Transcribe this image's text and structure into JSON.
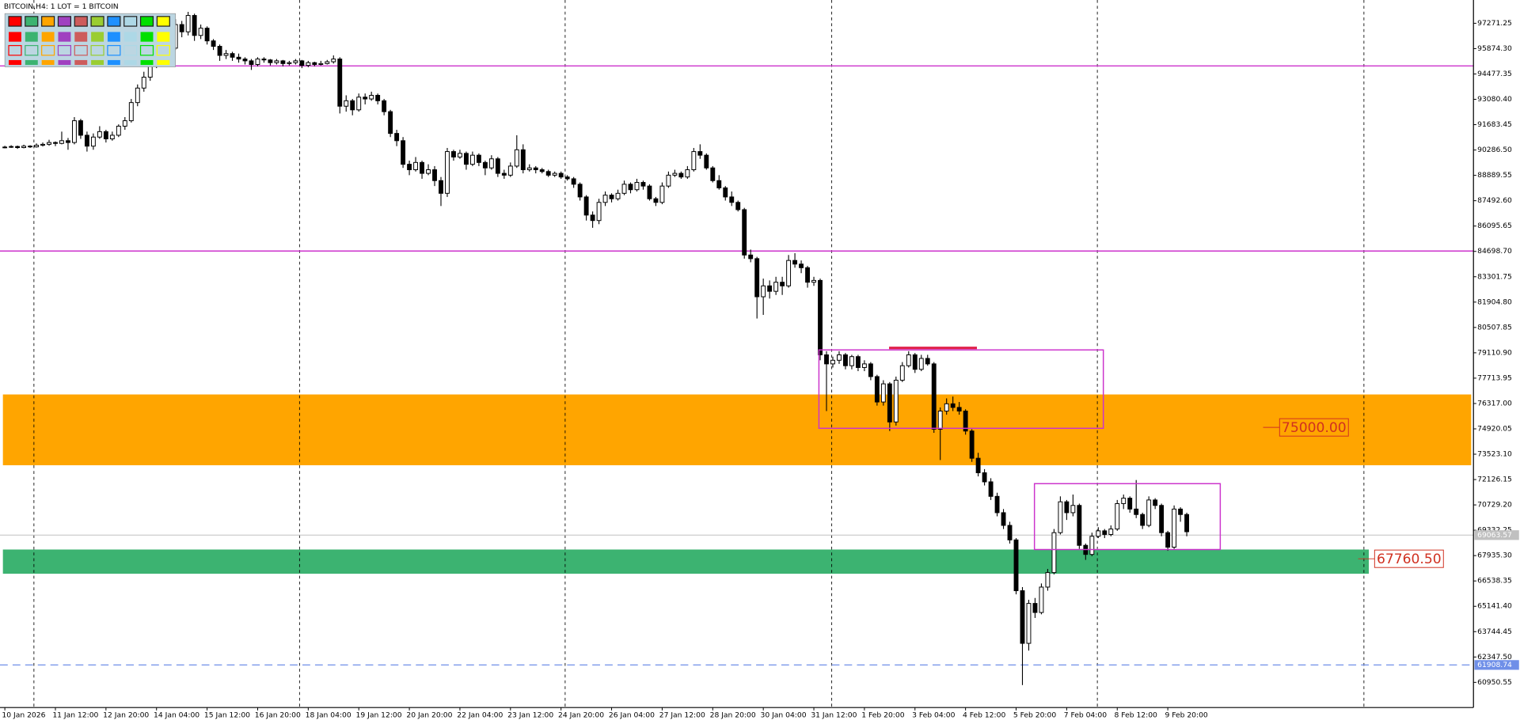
{
  "chart_data": {
    "type": "candlestick",
    "title": "BITCOIN,H4:  1 LOT = 1 BITCOIN",
    "ylim": [
      59563,
      98553
    ],
    "yticks": [
      {
        "value": 97271.25,
        "label": "97271.25"
      },
      {
        "value": 95874.3,
        "label": "95874.30"
      },
      {
        "value": 94477.35,
        "label": "94477.35"
      },
      {
        "value": 93080.4,
        "label": "93080.40"
      },
      {
        "value": 91683.45,
        "label": "91683.45"
      },
      {
        "value": 90286.5,
        "label": "90286.50"
      },
      {
        "value": 88889.55,
        "label": "88889.55"
      },
      {
        "value": 87492.6,
        "label": "87492.60"
      },
      {
        "value": 86095.65,
        "label": "86095.65"
      },
      {
        "value": 84698.7,
        "label": "84698.70"
      },
      {
        "value": 83301.75,
        "label": "83301.75"
      },
      {
        "value": 81904.8,
        "label": "81904.80"
      },
      {
        "value": 80507.85,
        "label": "80507.85"
      },
      {
        "value": 79110.9,
        "label": "79110.90"
      },
      {
        "value": 77713.95,
        "label": "77713.95"
      },
      {
        "value": 76317,
        "label": "76317.00"
      },
      {
        "value": 74920.05,
        "label": "74920.05"
      },
      {
        "value": 73523.1,
        "label": "73523.10"
      },
      {
        "value": 72126.15,
        "label": "72126.15"
      },
      {
        "value": 70729.2,
        "label": "70729.20"
      },
      {
        "value": 69332.25,
        "label": "69332.25"
      },
      {
        "value": 67935.3,
        "label": "67935.30"
      },
      {
        "value": 66538.35,
        "label": "66538.35"
      },
      {
        "value": 65141.4,
        "label": "65141.40"
      },
      {
        "value": 63744.45,
        "label": "63744.45"
      },
      {
        "value": 62347.5,
        "label": "62347.50"
      },
      {
        "value": 60950.55,
        "label": "60950.55"
      }
    ],
    "time_labels": [
      "10 Jan 2026",
      "11 Jan 12:00",
      "12 Jan 20:00",
      "14 Jan 04:00",
      "15 Jan 12:00",
      "16 Jan 20:00",
      "18 Jan 04:00",
      "19 Jan 12:00",
      "20 Jan 20:00",
      "22 Jan 04:00",
      "23 Jan 12:00",
      "24 Jan 20:00",
      "26 Jan 04:00",
      "27 Jan 12:00",
      "28 Jan 20:00",
      "30 Jan 04:00",
      "31 Jan 12:00",
      "1 Feb 20:00",
      "3 Feb 04:00",
      "4 Feb 12:00",
      "5 Feb 20:00",
      "7 Feb 04:00",
      "8 Feb 12:00",
      "9 Feb 20:00"
    ],
    "candles": [
      [
        90420,
        90520,
        90380,
        90450
      ],
      [
        90450,
        90550,
        90400,
        90480
      ],
      [
        90480,
        90530,
        90350,
        90420
      ],
      [
        90420,
        90580,
        90380,
        90500
      ],
      [
        90500,
        90550,
        90400,
        90460
      ],
      [
        90460,
        90650,
        90420,
        90550
      ],
      [
        90550,
        90700,
        90480,
        90600
      ],
      [
        90600,
        90850,
        90520,
        90700
      ],
      [
        90700,
        90760,
        90500,
        90650
      ],
      [
        90650,
        91300,
        90600,
        90800
      ],
      [
        90800,
        90950,
        90300,
        90700
      ],
      [
        90700,
        92100,
        90600,
        91900
      ],
      [
        91900,
        92000,
        90900,
        91100
      ],
      [
        91100,
        91300,
        90200,
        90500
      ],
      [
        90500,
        91200,
        90300,
        91000
      ],
      [
        91000,
        91600,
        90900,
        91300
      ],
      [
        91300,
        91400,
        90700,
        90900
      ],
      [
        90900,
        91300,
        90800,
        91100
      ],
      [
        91100,
        91700,
        91000,
        91600
      ],
      [
        91600,
        92100,
        91400,
        91900
      ],
      [
        91900,
        93100,
        91800,
        92900
      ],
      [
        92900,
        93900,
        92700,
        93700
      ],
      [
        93700,
        94600,
        93500,
        94300
      ],
      [
        94300,
        95300,
        94100,
        95000
      ],
      [
        95000,
        95800,
        94800,
        95500
      ],
      [
        95500,
        95700,
        94900,
        95200
      ],
      [
        95200,
        96200,
        95100,
        95900
      ],
      [
        95900,
        97500,
        95800,
        97200
      ],
      [
        97200,
        97400,
        96500,
        96800
      ],
      [
        96800,
        97900,
        96600,
        97700
      ],
      [
        97700,
        97800,
        96300,
        96600
      ],
      [
        96600,
        97200,
        96400,
        97000
      ],
      [
        97000,
        97100,
        96100,
        96300
      ],
      [
        96300,
        96400,
        95800,
        96000
      ],
      [
        96000,
        96100,
        95200,
        95500
      ],
      [
        95500,
        95800,
        95300,
        95600
      ],
      [
        95600,
        95700,
        95200,
        95400
      ],
      [
        95400,
        95600,
        95100,
        95300
      ],
      [
        95300,
        95400,
        95000,
        95200
      ],
      [
        95200,
        95300,
        94700,
        95000
      ],
      [
        95000,
        95400,
        94900,
        95300
      ],
      [
        95300,
        95400,
        95100,
        95250
      ],
      [
        95250,
        95300,
        94950,
        95100
      ],
      [
        95100,
        95300,
        95000,
        95200
      ],
      [
        95200,
        95250,
        94900,
        95050
      ],
      [
        95050,
        95200,
        94950,
        95100
      ],
      [
        95100,
        95300,
        95000,
        95200
      ],
      [
        95200,
        95250,
        94800,
        94950
      ],
      [
        94950,
        95200,
        94850,
        95100
      ],
      [
        95100,
        95150,
        94900,
        95000
      ],
      [
        95000,
        95200,
        94950,
        95050
      ],
      [
        95050,
        95250,
        95000,
        95150
      ],
      [
        95150,
        95500,
        95050,
        95300
      ],
      [
        95300,
        95400,
        92300,
        92700
      ],
      [
        92700,
        93300,
        92400,
        93000
      ],
      [
        93000,
        93100,
        92200,
        92500
      ],
      [
        92500,
        93400,
        92400,
        93200
      ],
      [
        93200,
        93400,
        92800,
        93100
      ],
      [
        93100,
        93500,
        93000,
        93300
      ],
      [
        93300,
        93400,
        92800,
        93000
      ],
      [
        93000,
        93100,
        92200,
        92400
      ],
      [
        92400,
        92500,
        91000,
        91200
      ],
      [
        91200,
        91400,
        90500,
        90800
      ],
      [
        90800,
        91000,
        89300,
        89500
      ],
      [
        89500,
        89700,
        88900,
        89200
      ],
      [
        89200,
        89900,
        89100,
        89600
      ],
      [
        89600,
        89700,
        88700,
        89000
      ],
      [
        89000,
        89500,
        88900,
        89200
      ],
      [
        89200,
        89400,
        88300,
        88600
      ],
      [
        88600,
        88800,
        87200,
        87900
      ],
      [
        87900,
        90400,
        87700,
        90200
      ],
      [
        90200,
        90300,
        89700,
        89900
      ],
      [
        89900,
        90300,
        89800,
        90100
      ],
      [
        90100,
        90200,
        89200,
        89500
      ],
      [
        89500,
        90200,
        89400,
        90000
      ],
      [
        90000,
        90100,
        89400,
        89600
      ],
      [
        89600,
        89700,
        88900,
        89300
      ],
      [
        89300,
        90000,
        89200,
        89800
      ],
      [
        89800,
        89900,
        88800,
        89000
      ],
      [
        89000,
        89200,
        88700,
        88900
      ],
      [
        88900,
        89600,
        88800,
        89400
      ],
      [
        89400,
        91100,
        89300,
        90300
      ],
      [
        90300,
        90600,
        89000,
        89200
      ],
      [
        89200,
        89500,
        89100,
        89300
      ],
      [
        89300,
        89400,
        89000,
        89200
      ],
      [
        89200,
        89300,
        89000,
        89100
      ],
      [
        89100,
        89200,
        88800,
        88900
      ],
      [
        88900,
        89100,
        88800,
        89000
      ],
      [
        89000,
        89100,
        88700,
        88800
      ],
      [
        88800,
        88900,
        88600,
        88700
      ],
      [
        88700,
        88800,
        88200,
        88400
      ],
      [
        88400,
        88500,
        87500,
        87700
      ],
      [
        87700,
        87800,
        86400,
        86700
      ],
      [
        86700,
        86900,
        86000,
        86400
      ],
      [
        86400,
        87600,
        86200,
        87400
      ],
      [
        87400,
        88000,
        87200,
        87800
      ],
      [
        87800,
        87900,
        87400,
        87600
      ],
      [
        87600,
        88100,
        87500,
        87900
      ],
      [
        87900,
        88600,
        87800,
        88400
      ],
      [
        88400,
        88500,
        87900,
        88100
      ],
      [
        88100,
        88700,
        88000,
        88500
      ],
      [
        88500,
        88600,
        88100,
        88300
      ],
      [
        88300,
        88400,
        87500,
        87600
      ],
      [
        87600,
        87700,
        87200,
        87400
      ],
      [
        87400,
        88500,
        87300,
        88300
      ],
      [
        88300,
        89100,
        88200,
        88900
      ],
      [
        88900,
        89200,
        88800,
        89000
      ],
      [
        89000,
        89100,
        88700,
        88800
      ],
      [
        88800,
        89400,
        88700,
        89200
      ],
      [
        89200,
        90400,
        89100,
        90200
      ],
      [
        90200,
        90600,
        89800,
        90000
      ],
      [
        90000,
        90100,
        89200,
        89300
      ],
      [
        89300,
        89400,
        88500,
        88600
      ],
      [
        88600,
        88900,
        88100,
        88200
      ],
      [
        88200,
        88300,
        87500,
        87700
      ],
      [
        87700,
        88000,
        87200,
        87400
      ],
      [
        87400,
        87500,
        86900,
        87000
      ],
      [
        87000,
        87100,
        84300,
        84500
      ],
      [
        84500,
        84800,
        84100,
        84300
      ],
      [
        84300,
        84400,
        81000,
        82200
      ],
      [
        82200,
        83200,
        81200,
        82800
      ],
      [
        82800,
        83100,
        82100,
        82500
      ],
      [
        82500,
        83300,
        82300,
        83000
      ],
      [
        83000,
        83300,
        82300,
        82800
      ],
      [
        82800,
        84500,
        82700,
        84200
      ],
      [
        84200,
        84600,
        83800,
        84000
      ],
      [
        84000,
        84200,
        83500,
        83800
      ],
      [
        83800,
        83900,
        82700,
        83000
      ],
      [
        83000,
        83300,
        82800,
        83100
      ],
      [
        83100,
        83200,
        78700,
        79000
      ],
      [
        79000,
        79200,
        75900,
        78500
      ],
      [
        78500,
        78900,
        78300,
        78700
      ],
      [
        78700,
        79200,
        78500,
        79000
      ],
      [
        79000,
        79100,
        78200,
        78400
      ],
      [
        78400,
        79000,
        78200,
        78900
      ],
      [
        78900,
        79000,
        78100,
        78300
      ],
      [
        78300,
        78700,
        78100,
        78500
      ],
      [
        78500,
        78600,
        77600,
        77800
      ],
      [
        77800,
        77900,
        76200,
        76400
      ],
      [
        76400,
        77600,
        76200,
        77400
      ],
      [
        77400,
        77500,
        74800,
        75300
      ],
      [
        75300,
        77800,
        75100,
        77600
      ],
      [
        77600,
        78600,
        77500,
        78400
      ],
      [
        78400,
        79200,
        78300,
        79000
      ],
      [
        79000,
        79100,
        78000,
        78200
      ],
      [
        78200,
        79000,
        78100,
        78800
      ],
      [
        78800,
        79000,
        78400,
        78500
      ],
      [
        78500,
        78600,
        74700,
        74900
      ],
      [
        74900,
        76100,
        73200,
        75900
      ],
      [
        75900,
        76600,
        75700,
        76300
      ],
      [
        76300,
        76700,
        75900,
        76100
      ],
      [
        76100,
        76400,
        75700,
        75900
      ],
      [
        75900,
        76000,
        74600,
        74800
      ],
      [
        74800,
        74900,
        73100,
        73300
      ],
      [
        73300,
        73600,
        72300,
        72500
      ],
      [
        72500,
        72700,
        71800,
        72000
      ],
      [
        72000,
        72200,
        71000,
        71200
      ],
      [
        71200,
        71400,
        70100,
        70300
      ],
      [
        70300,
        70500,
        69400,
        69600
      ],
      [
        69600,
        69800,
        68600,
        68800
      ],
      [
        68800,
        68900,
        65800,
        66000
      ],
      [
        66000,
        66200,
        60800,
        63100
      ],
      [
        63100,
        65500,
        62700,
        65300
      ],
      [
        65300,
        65600,
        64500,
        64800
      ],
      [
        64800,
        66400,
        64700,
        66200
      ],
      [
        66200,
        67200,
        66000,
        67000
      ],
      [
        67000,
        69400,
        66900,
        69200
      ],
      [
        69200,
        71200,
        69100,
        70900
      ],
      [
        70900,
        71000,
        69900,
        70300
      ],
      [
        70300,
        71300,
        70100,
        70700
      ],
      [
        70700,
        70800,
        68300,
        68500
      ],
      [
        68500,
        68600,
        67700,
        68000
      ],
      [
        68000,
        69200,
        67900,
        69000
      ],
      [
        69000,
        69500,
        68900,
        69300
      ],
      [
        69300,
        69400,
        68900,
        69100
      ],
      [
        69100,
        69600,
        69000,
        69400
      ],
      [
        69400,
        71000,
        69300,
        70800
      ],
      [
        70800,
        71300,
        70500,
        71100
      ],
      [
        71100,
        71200,
        70300,
        70500
      ],
      [
        70500,
        72100,
        70000,
        70200
      ],
      [
        70200,
        70300,
        69400,
        69600
      ],
      [
        69600,
        71200,
        69500,
        71000
      ],
      [
        71000,
        71100,
        70500,
        70700
      ],
      [
        70700,
        70800,
        69000,
        69200
      ],
      [
        69200,
        69300,
        68200,
        68400
      ],
      [
        68400,
        70700,
        68300,
        70500
      ],
      [
        70500,
        70600,
        69800,
        70200
      ],
      [
        70200,
        70300,
        69000,
        69250
      ]
    ],
    "hlines": [
      {
        "value": 94920,
        "color": "#cc33cc"
      },
      {
        "value": 84720,
        "color": "#cc33cc"
      }
    ],
    "current_price": 69063.57,
    "dashed_line": {
      "value": 61908.74,
      "label": "61908.74",
      "color": "#6f8fe8"
    },
    "zones": [
      {
        "top": 76815,
        "bottom": 72915,
        "color": "#ffa500",
        "end": 232,
        "label": {
          "value": 75000,
          "label": "75000.00"
        }
      },
      {
        "top": 68270,
        "bottom": 66935,
        "color": "#3cb371",
        "end": 215.8,
        "label": {
          "value": 67760.5,
          "label": "67760.50"
        }
      }
    ],
    "boxes": [
      {
        "top": 79270,
        "bottom": 74950,
        "start": 128.8,
        "end": 173.8,
        "color": "#cc33cc"
      },
      {
        "top": 71900,
        "bottom": 68270,
        "start": 162.9,
        "end": 192.3,
        "color": "#cc33cc"
      }
    ],
    "segment": {
      "value": 79380,
      "start": 139.9,
      "end": 153.8,
      "color": "#e0204a"
    }
  }
}
